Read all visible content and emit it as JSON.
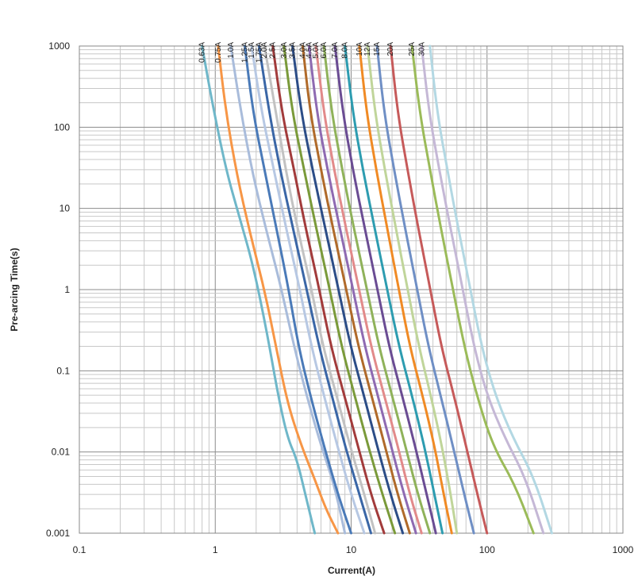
{
  "chart_data": {
    "type": "line",
    "xlabel": "Current(A)",
    "ylabel": "Pre-arcing Time(s)",
    "xscale": "log",
    "yscale": "log",
    "xlim": [
      0.1,
      1000
    ],
    "ylim": [
      0.001,
      1000
    ],
    "grid": true,
    "x_ticks": [
      "0.1",
      "1",
      "10",
      "100",
      "1000"
    ],
    "y_ticks": [
      "0.001",
      "0.01",
      "0.1",
      "1",
      "10",
      "100",
      "1000"
    ],
    "series": [
      {
        "name": "0.63A",
        "color": "#6fb7c9",
        "points": [
          [
            0.8,
            1000
          ],
          [
            0.95,
            200
          ],
          [
            1.2,
            30
          ],
          [
            1.5,
            8
          ],
          [
            1.9,
            2
          ],
          [
            2.4,
            0.3
          ],
          [
            2.9,
            0.05
          ],
          [
            3.4,
            0.015
          ],
          [
            4.0,
            0.008
          ],
          [
            4.6,
            0.003
          ],
          [
            5.4,
            0.001
          ]
        ]
      },
      {
        "name": "0.75A",
        "color": "#f79646",
        "points": [
          [
            1.05,
            1000
          ],
          [
            1.2,
            150
          ],
          [
            1.45,
            25
          ],
          [
            1.8,
            5
          ],
          [
            2.3,
            1
          ],
          [
            2.8,
            0.2
          ],
          [
            3.4,
            0.04
          ],
          [
            4.3,
            0.012
          ],
          [
            5.3,
            0.005
          ],
          [
            6.5,
            0.002
          ],
          [
            8.0,
            0.001
          ]
        ]
      },
      {
        "name": "1.0A",
        "color": "#a9bcdb",
        "points": [
          [
            1.3,
            1000
          ],
          [
            1.55,
            150
          ],
          [
            1.9,
            25
          ],
          [
            2.4,
            5
          ],
          [
            3.0,
            1.2
          ],
          [
            3.8,
            0.2
          ],
          [
            4.7,
            0.05
          ],
          [
            6.0,
            0.012
          ],
          [
            7.5,
            0.004
          ],
          [
            9.0,
            0.001
          ]
        ]
      },
      {
        "name": "1.25A",
        "color": "#4a7ab8",
        "points": [
          [
            1.65,
            1000
          ],
          [
            1.9,
            150
          ],
          [
            2.3,
            30
          ],
          [
            2.8,
            6
          ],
          [
            3.4,
            1.2
          ],
          [
            4.1,
            0.2
          ],
          [
            5.0,
            0.05
          ],
          [
            6.3,
            0.012
          ],
          [
            8.0,
            0.003
          ],
          [
            10.0,
            0.001
          ]
        ]
      },
      {
        "name": "1.5A",
        "color": "#b7c8e3",
        "points": [
          [
            1.85,
            1000
          ],
          [
            2.2,
            150
          ],
          [
            2.7,
            30
          ],
          [
            3.3,
            6
          ],
          [
            4.1,
            1.2
          ],
          [
            5.1,
            0.2
          ],
          [
            6.3,
            0.05
          ],
          [
            7.9,
            0.012
          ],
          [
            10.0,
            0.003
          ],
          [
            12.5,
            0.001
          ]
        ]
      },
      {
        "name": "1.75A",
        "color": "#3a66a6",
        "points": [
          [
            2.1,
            1000
          ],
          [
            2.5,
            150
          ],
          [
            3.0,
            30
          ],
          [
            3.7,
            6
          ],
          [
            4.6,
            1.2
          ],
          [
            5.8,
            0.2
          ],
          [
            7.2,
            0.05
          ],
          [
            9.0,
            0.012
          ],
          [
            11.5,
            0.003
          ],
          [
            14.0,
            0.001
          ]
        ]
      },
      {
        "name": "2.0A",
        "color": "#c2c2c2",
        "points": [
          [
            2.3,
            1000
          ],
          [
            2.8,
            150
          ],
          [
            3.3,
            30
          ],
          [
            4.0,
            6
          ],
          [
            5.0,
            1.2
          ],
          [
            6.2,
            0.2
          ],
          [
            7.8,
            0.05
          ],
          [
            9.8,
            0.012
          ],
          [
            12.5,
            0.003
          ],
          [
            15.0,
            0.001
          ]
        ]
      },
      {
        "name": "2.5A",
        "color": "#a23b3b",
        "points": [
          [
            2.65,
            1000
          ],
          [
            3.1,
            150
          ],
          [
            3.8,
            30
          ],
          [
            4.6,
            6
          ],
          [
            5.7,
            1.2
          ],
          [
            7.1,
            0.2
          ],
          [
            8.9,
            0.05
          ],
          [
            11.2,
            0.012
          ],
          [
            14.0,
            0.003
          ],
          [
            17.5,
            0.001
          ]
        ]
      },
      {
        "name": "3.0A",
        "color": "#7a9a3a",
        "points": [
          [
            3.2,
            1000
          ],
          [
            3.7,
            150
          ],
          [
            4.5,
            30
          ],
          [
            5.5,
            6
          ],
          [
            6.8,
            1.2
          ],
          [
            8.5,
            0.2
          ],
          [
            10.6,
            0.05
          ],
          [
            13.3,
            0.012
          ],
          [
            17.0,
            0.003
          ],
          [
            21.0,
            0.001
          ]
        ]
      },
      {
        "name": "3.5A",
        "color": "#2c4d87",
        "points": [
          [
            3.7,
            1000
          ],
          [
            4.3,
            150
          ],
          [
            5.2,
            30
          ],
          [
            6.4,
            6
          ],
          [
            7.9,
            1.2
          ],
          [
            9.9,
            0.2
          ],
          [
            12.4,
            0.05
          ],
          [
            15.5,
            0.012
          ],
          [
            19.5,
            0.003
          ],
          [
            24.0,
            0.001
          ]
        ]
      },
      {
        "name": "4.0A",
        "color": "#b06a2a",
        "points": [
          [
            4.4,
            1000
          ],
          [
            5.0,
            150
          ],
          [
            6.0,
            30
          ],
          [
            7.3,
            6
          ],
          [
            9.0,
            1.2
          ],
          [
            11.3,
            0.2
          ],
          [
            14.1,
            0.05
          ],
          [
            17.7,
            0.012
          ],
          [
            22.0,
            0.003
          ],
          [
            27.0,
            0.001
          ]
        ]
      },
      {
        "name": "4.5A",
        "color": "#8e6ab2",
        "points": [
          [
            4.9,
            1000
          ],
          [
            5.6,
            150
          ],
          [
            6.7,
            30
          ],
          [
            8.2,
            6
          ],
          [
            10.1,
            1.2
          ],
          [
            12.6,
            0.2
          ],
          [
            15.7,
            0.05
          ],
          [
            19.6,
            0.012
          ],
          [
            24.5,
            0.003
          ],
          [
            30.0,
            0.001
          ]
        ]
      },
      {
        "name": "5.0A",
        "color": "#e28a8a",
        "points": [
          [
            5.5,
            1000
          ],
          [
            6.3,
            150
          ],
          [
            7.5,
            30
          ],
          [
            9.1,
            6
          ],
          [
            11.2,
            1.2
          ],
          [
            14.0,
            0.2
          ],
          [
            17.5,
            0.05
          ],
          [
            22.0,
            0.012
          ],
          [
            27.0,
            0.003
          ],
          [
            33.0,
            0.001
          ]
        ]
      },
      {
        "name": "6.0A",
        "color": "#8fb25a",
        "points": [
          [
            6.3,
            1000
          ],
          [
            7.2,
            150
          ],
          [
            8.6,
            30
          ],
          [
            10.4,
            6
          ],
          [
            12.8,
            1.2
          ],
          [
            16.0,
            0.2
          ],
          [
            20.0,
            0.05
          ],
          [
            25.0,
            0.012
          ],
          [
            31.0,
            0.003
          ],
          [
            38.0,
            0.001
          ]
        ]
      },
      {
        "name": "7.0A",
        "color": "#6a4c93",
        "points": [
          [
            7.6,
            1000
          ],
          [
            8.7,
            150
          ],
          [
            10.3,
            30
          ],
          [
            12.5,
            6
          ],
          [
            15.3,
            1.2
          ],
          [
            19.0,
            0.2
          ],
          [
            23.7,
            0.05
          ],
          [
            29.5,
            0.012
          ],
          [
            36.0,
            0.003
          ],
          [
            42.0,
            0.001
          ]
        ]
      },
      {
        "name": "8.0A",
        "color": "#2d9cb0",
        "points": [
          [
            9.0,
            1000
          ],
          [
            10.3,
            150
          ],
          [
            12.2,
            30
          ],
          [
            14.8,
            6
          ],
          [
            18.0,
            1.2
          ],
          [
            22.5,
            0.2
          ],
          [
            28.0,
            0.05
          ],
          [
            34.5,
            0.012
          ],
          [
            41.0,
            0.003
          ],
          [
            47.0,
            0.001
          ]
        ]
      },
      {
        "name": "10A",
        "color": "#f08a24",
        "points": [
          [
            11.5,
            1000
          ],
          [
            13.0,
            150
          ],
          [
            15.3,
            30
          ],
          [
            18.3,
            6
          ],
          [
            22.0,
            1.2
          ],
          [
            27.0,
            0.2
          ],
          [
            33.5,
            0.05
          ],
          [
            41.0,
            0.012
          ],
          [
            48.0,
            0.003
          ],
          [
            55.0,
            0.001
          ]
        ]
      },
      {
        "name": "12A",
        "color": "#c0d59a",
        "points": [
          [
            13.2,
            1000
          ],
          [
            15.0,
            150
          ],
          [
            17.7,
            30
          ],
          [
            21.2,
            6
          ],
          [
            25.5,
            1.2
          ],
          [
            31.5,
            0.2
          ],
          [
            38.5,
            0.05
          ],
          [
            46.5,
            0.012
          ],
          [
            54.0,
            0.003
          ],
          [
            60.0,
            0.001
          ]
        ]
      },
      {
        "name": "15A",
        "color": "#6f8fc5",
        "points": [
          [
            15.5,
            1000
          ],
          [
            17.5,
            150
          ],
          [
            20.7,
            30
          ],
          [
            24.8,
            6
          ],
          [
            30.0,
            1.2
          ],
          [
            37.0,
            0.2
          ],
          [
            45.5,
            0.05
          ],
          [
            56.0,
            0.012
          ],
          [
            68.0,
            0.003
          ],
          [
            80.0,
            0.001
          ]
        ]
      },
      {
        "name": "20A",
        "color": "#c65a5a",
        "points": [
          [
            19.5,
            1000
          ],
          [
            22.0,
            150
          ],
          [
            26.0,
            30
          ],
          [
            31.0,
            6
          ],
          [
            37.5,
            1.2
          ],
          [
            46.0,
            0.2
          ],
          [
            57.0,
            0.05
          ],
          [
            70.0,
            0.012
          ],
          [
            85.0,
            0.003
          ],
          [
            100.0,
            0.001
          ]
        ]
      },
      {
        "name": "25A",
        "color": "#9bbb59",
        "points": [
          [
            28.0,
            1000
          ],
          [
            32.0,
            150
          ],
          [
            38.0,
            30
          ],
          [
            45.5,
            6
          ],
          [
            55.0,
            1.2
          ],
          [
            68.0,
            0.2
          ],
          [
            84.0,
            0.05
          ],
          [
            110.0,
            0.012
          ],
          [
            160.0,
            0.004
          ],
          [
            220.0,
            0.001
          ]
        ]
      },
      {
        "name": "30A",
        "color": "#c5b8d6",
        "points": [
          [
            33.0,
            1000
          ],
          [
            37.5,
            150
          ],
          [
            44.5,
            30
          ],
          [
            53.5,
            6
          ],
          [
            65.0,
            1.2
          ],
          [
            80.0,
            0.2
          ],
          [
            100.0,
            0.05
          ],
          [
            135.0,
            0.015
          ],
          [
            190.0,
            0.005
          ],
          [
            260.0,
            0.001
          ]
        ]
      },
      {
        "name": "",
        "color": "#b3d8e3",
        "points": [
          [
            38.0,
            1000
          ],
          [
            43.0,
            150
          ],
          [
            51.0,
            30
          ],
          [
            61.0,
            6
          ],
          [
            74.0,
            1.2
          ],
          [
            91.0,
            0.2
          ],
          [
            115.0,
            0.05
          ],
          [
            155.0,
            0.015
          ],
          [
            220.0,
            0.005
          ],
          [
            300.0,
            0.001
          ]
        ]
      }
    ]
  }
}
